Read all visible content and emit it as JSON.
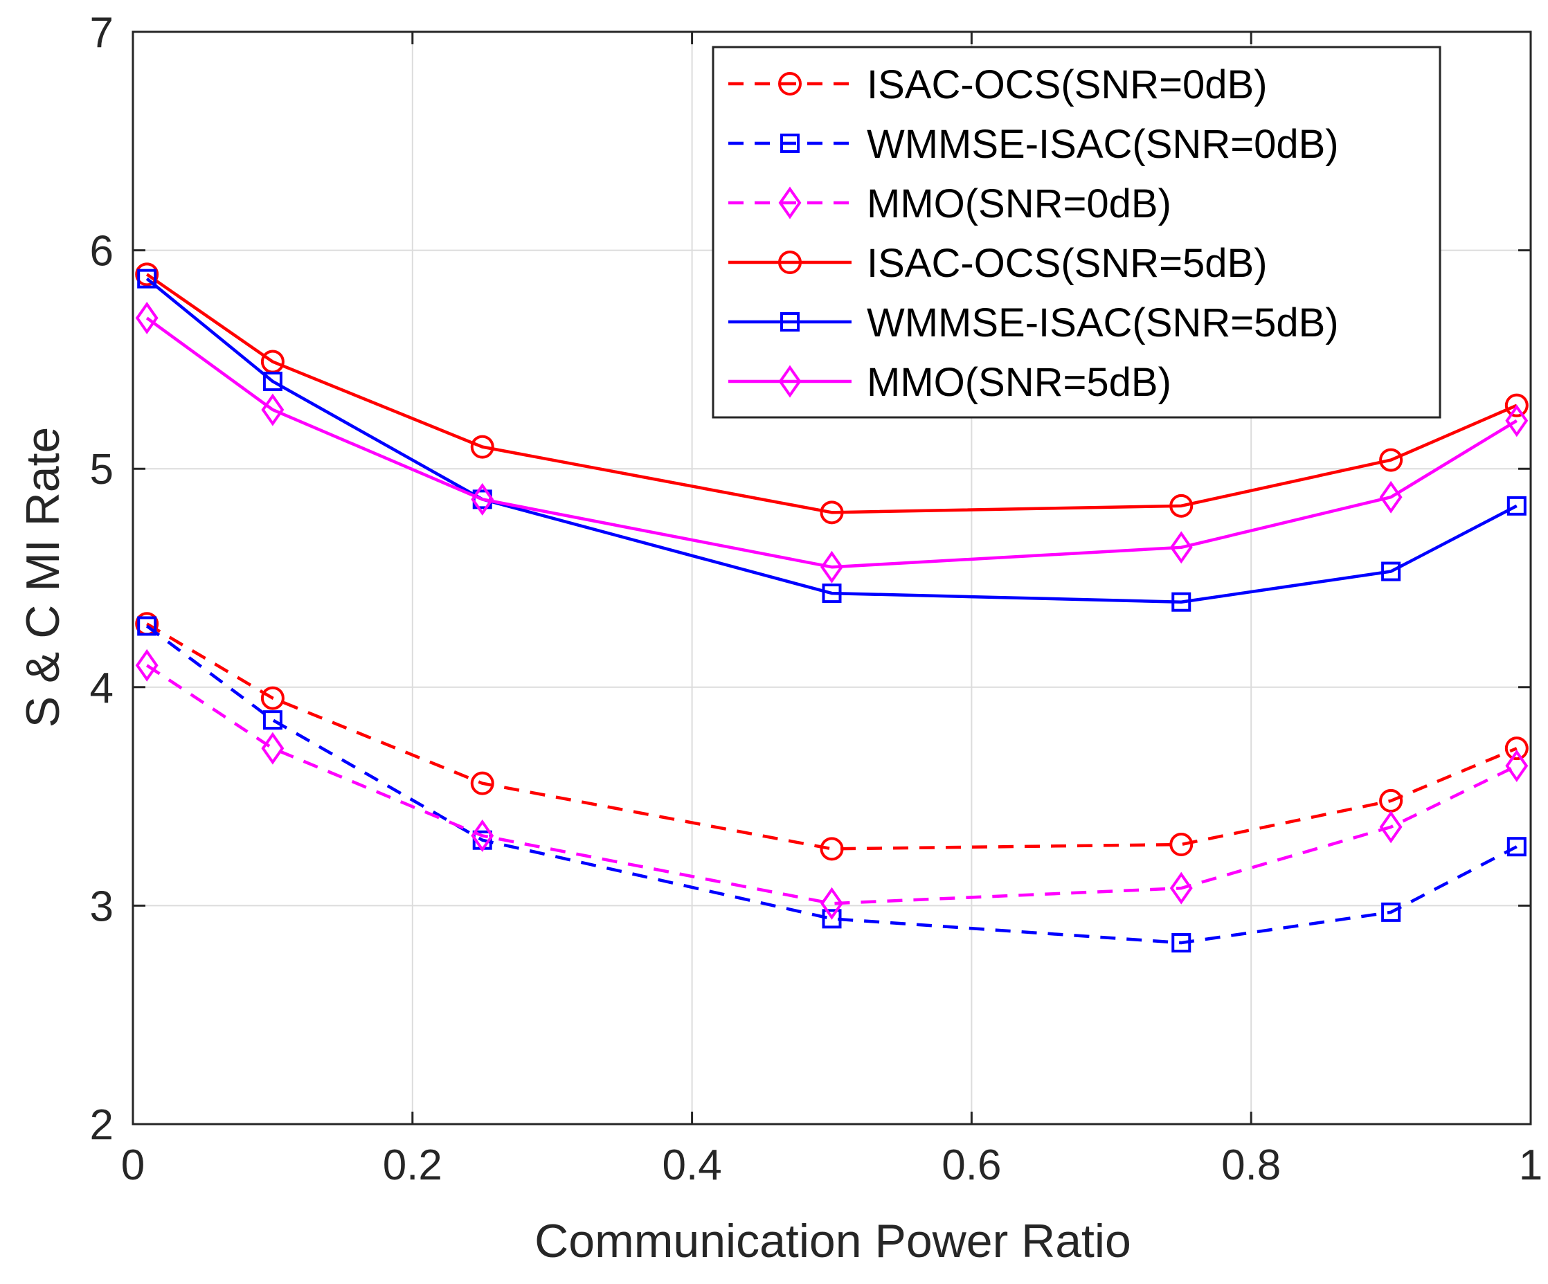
{
  "chart_data": {
    "type": "line",
    "xlabel": "Communication Power Ratio",
    "ylabel": "S & C MI Rate",
    "xlim": [
      0,
      1
    ],
    "ylim": [
      2,
      7
    ],
    "xticks": [
      0,
      0.2,
      0.4,
      0.6,
      0.8,
      1
    ],
    "xtick_labels": [
      "0",
      "0.2",
      "0.4",
      "0.6",
      "0.8",
      "1"
    ],
    "yticks": [
      2,
      3,
      4,
      5,
      6,
      7
    ],
    "ytick_labels": [
      "2",
      "3",
      "4",
      "5",
      "6",
      "7"
    ],
    "grid": true,
    "legend_position": "top-right",
    "x": [
      0.01,
      0.1,
      0.25,
      0.5,
      0.75,
      0.9,
      0.99
    ],
    "series": [
      {
        "name": "ISAC-OCS(SNR=0dB)",
        "color": "#ff0000",
        "dashed": true,
        "marker": "circle",
        "values": [
          4.29,
          3.95,
          3.56,
          3.26,
          3.28,
          3.48,
          3.72
        ]
      },
      {
        "name": "WMMSE-ISAC(SNR=0dB)",
        "color": "#0000ff",
        "dashed": true,
        "marker": "square",
        "values": [
          4.28,
          3.85,
          3.3,
          2.94,
          2.83,
          2.97,
          3.27
        ]
      },
      {
        "name": "MMO(SNR=0dB)",
        "color": "#ff00ff",
        "dashed": true,
        "marker": "diamond",
        "values": [
          4.1,
          3.72,
          3.32,
          3.01,
          3.08,
          3.36,
          3.64
        ]
      },
      {
        "name": "ISAC-OCS(SNR=5dB)",
        "color": "#ff0000",
        "dashed": false,
        "marker": "circle",
        "values": [
          5.89,
          5.49,
          5.1,
          4.8,
          4.83,
          5.04,
          5.29
        ]
      },
      {
        "name": "WMMSE-ISAC(SNR=5dB)",
        "color": "#0000ff",
        "dashed": false,
        "marker": "square",
        "values": [
          5.87,
          5.4,
          4.86,
          4.43,
          4.39,
          4.53,
          4.83
        ]
      },
      {
        "name": "MMO(SNR=5dB)",
        "color": "#ff00ff",
        "dashed": false,
        "marker": "diamond",
        "values": [
          5.69,
          5.27,
          4.86,
          4.55,
          4.64,
          4.87,
          5.22
        ]
      }
    ]
  }
}
